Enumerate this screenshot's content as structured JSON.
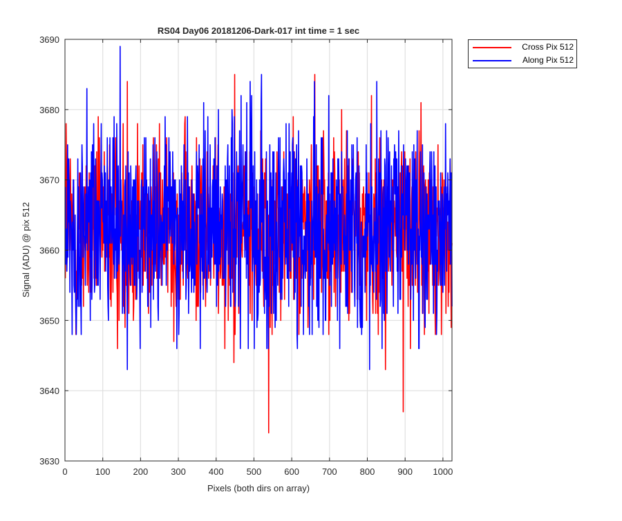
{
  "chart_data": {
    "type": "line",
    "title": "RS04 Day06 20181206-Dark-017 int time = 1 sec",
    "xlabel": "Pixels (both dirs on array)",
    "ylabel": "Signal (ADU) @ pix 512",
    "xlim": [
      0,
      1024
    ],
    "ylim": [
      3630,
      3690
    ],
    "xticks": [
      "0",
      "100",
      "200",
      "300",
      "400",
      "500",
      "600",
      "700",
      "800",
      "900",
      "1000"
    ],
    "yticks": [
      "3630",
      "3640",
      "3650",
      "3660",
      "3670",
      "3680",
      "3690"
    ],
    "grid": true,
    "legend_position": "outside-top-right",
    "x_range": [
      1,
      1024
    ],
    "series": [
      {
        "name": "Cross Pix 512",
        "color": "#ff0000",
        "mean": 3663,
        "min": 3634,
        "max": 3685,
        "extremes": [
          [
            539,
            3634
          ],
          [
            895,
            3637
          ],
          [
            449,
            3685
          ],
          [
            661,
            3685
          ],
          [
            165,
            3684
          ],
          [
            3,
            3678
          ]
        ]
      },
      {
        "name": "Along Pix 512",
        "color": "#0000ff",
        "mean": 3663,
        "min": 3643,
        "max": 3689,
        "extremes": [
          [
            146,
            3689
          ],
          [
            520,
            3685
          ],
          [
            58,
            3683
          ],
          [
            825,
            3684
          ],
          [
            165,
            3643
          ],
          [
            806,
            3643
          ]
        ]
      }
    ]
  }
}
